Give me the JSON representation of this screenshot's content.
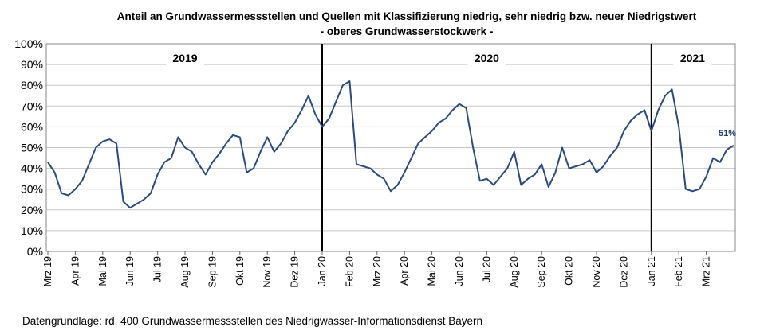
{
  "chart_data": {
    "type": "line",
    "title": "Anteil an Grundwassermessstellen und Quellen mit Klassifizierung niedrig, sehr niedrig bzw. neuer Niedrigstwert",
    "subtitle": "- oberes Grundwasserstockwerk -",
    "source": "Datengrundlage:  rd. 400 Grundwassermessstellen  des Niedrigwasser-Informationsdienst  Bayern",
    "annotations": [
      "2019",
      "2020",
      "2021"
    ],
    "categories": [
      "Mrz 19",
      null,
      null,
      null,
      "Apr 19",
      null,
      null,
      null,
      "Mai 19",
      null,
      null,
      null,
      "Jun 19",
      null,
      null,
      null,
      "Jul 19",
      null,
      null,
      null,
      "Aug 19",
      null,
      null,
      null,
      "Sep 19",
      null,
      null,
      null,
      "Okt 19",
      null,
      null,
      null,
      "Nov 19",
      null,
      null,
      null,
      "Dez 19",
      null,
      null,
      null,
      "Jan 20",
      null,
      null,
      null,
      "Feb 20",
      null,
      null,
      null,
      "Mrz 20",
      null,
      null,
      null,
      "Apr 20",
      null,
      null,
      null,
      "Mai 20",
      null,
      null,
      null,
      "Jun 20",
      null,
      null,
      null,
      "Jul 20",
      null,
      null,
      null,
      "Aug 20",
      null,
      null,
      null,
      "Sep 20",
      null,
      null,
      null,
      "Okt 20",
      null,
      null,
      null,
      "Nov 20",
      null,
      null,
      null,
      "Dez 20",
      null,
      null,
      null,
      "Jan 21",
      null,
      null,
      null,
      "Feb 21",
      null,
      null,
      null,
      "Mrz 21",
      null,
      null,
      null,
      null
    ],
    "values": [
      43,
      38,
      28,
      27,
      30,
      34,
      42,
      50,
      53,
      54,
      52,
      24,
      21,
      23,
      25,
      28,
      37,
      43,
      45,
      55,
      50,
      48,
      42,
      37,
      43,
      47,
      52,
      56,
      55,
      38,
      40,
      48,
      55,
      48,
      52,
      58,
      62,
      68,
      75,
      66,
      60,
      64,
      72,
      80,
      82,
      42,
      41,
      40,
      37,
      35,
      29,
      32,
      38,
      45,
      52,
      55,
      58,
      62,
      64,
      68,
      71,
      69,
      50,
      34,
      35,
      32,
      36,
      40,
      48,
      32,
      35,
      37,
      42,
      31,
      38,
      50,
      40,
      41,
      42,
      44,
      38,
      41,
      46,
      50,
      58,
      63,
      66,
      68,
      58,
      68,
      75,
      78,
      60,
      30,
      29,
      30,
      36,
      45,
      43,
      49,
      51
    ],
    "value_labels": [
      null,
      null,
      null,
      null,
      null,
      null,
      null,
      null,
      null,
      null,
      null,
      null,
      null,
      null,
      null,
      null,
      null,
      null,
      null,
      null,
      null,
      null,
      null,
      null,
      null,
      null,
      null,
      null,
      null,
      null,
      null,
      null,
      null,
      null,
      null,
      null,
      null,
      null,
      null,
      null,
      null,
      null,
      null,
      null,
      null,
      null,
      null,
      null,
      null,
      null,
      null,
      null,
      null,
      null,
      null,
      null,
      null,
      null,
      null,
      null,
      null,
      null,
      null,
      null,
      null,
      null,
      null,
      null,
      null,
      null,
      null,
      null,
      null,
      null,
      null,
      null,
      null,
      null,
      null,
      null,
      null,
      null,
      null,
      null,
      null,
      null,
      null,
      null,
      null,
      null,
      null,
      null,
      null,
      null,
      null,
      null,
      null,
      null,
      null,
      null,
      "51%"
    ],
    "color": "#2b4a7e",
    "ylim": [
      0,
      100
    ],
    "yticks": [
      {
        "value": 0,
        "label": "0%"
      },
      {
        "value": 10,
        "label": "10%"
      },
      {
        "value": 20,
        "label": "20%"
      },
      {
        "value": 30,
        "label": "30%"
      },
      {
        "value": 40,
        "label": "40%"
      },
      {
        "value": 50,
        "label": "50%"
      },
      {
        "value": 60,
        "label": "60%"
      },
      {
        "value": 70,
        "label": "70%"
      },
      {
        "value": 80,
        "label": "80%"
      },
      {
        "value": 90,
        "label": "90%"
      },
      {
        "value": 100,
        "label": "100%"
      }
    ],
    "grid": true
  }
}
